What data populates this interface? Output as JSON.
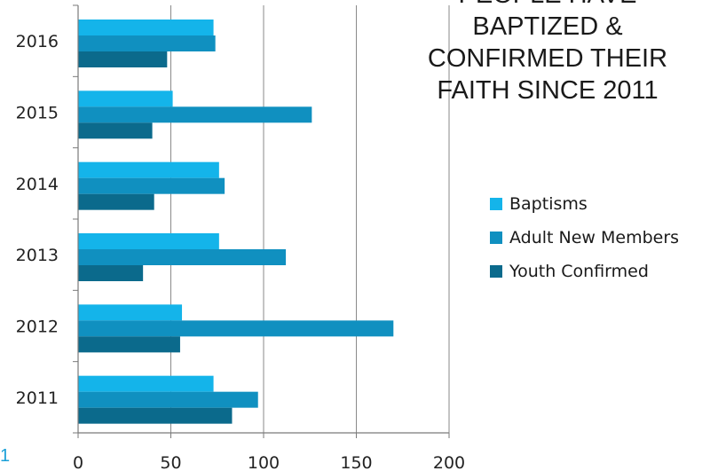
{
  "chart_data": {
    "type": "bar",
    "orientation": "horizontal",
    "title_lines": [
      "PEOPLE HAVE",
      "BAPTIZED &",
      "CONFIRMED THEIR",
      "FAITH SINCE 2011"
    ],
    "categories": [
      "2011",
      "2012",
      "2013",
      "2014",
      "2015",
      "2016"
    ],
    "series": [
      {
        "name": "Baptisms",
        "color": "#14b4ea",
        "values": [
          73,
          56,
          76,
          76,
          51,
          73
        ]
      },
      {
        "name": "Adult New Members",
        "color": "#1090c0",
        "values": [
          97,
          170,
          112,
          79,
          126,
          74
        ]
      },
      {
        "name": "Youth Confirmed",
        "color": "#0b6a8c",
        "values": [
          83,
          55,
          35,
          41,
          40,
          48
        ]
      }
    ],
    "xlim": [
      0,
      200
    ],
    "xticks": [
      "0",
      "50",
      "100",
      "150",
      "200"
    ],
    "grid": true,
    "legend_position": "right"
  },
  "corner_text": "1"
}
